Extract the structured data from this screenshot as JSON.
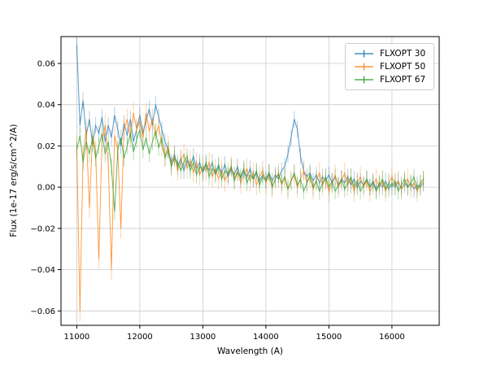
{
  "figure": {
    "background": "#ffffff"
  },
  "legend": {
    "position": "upper right"
  },
  "chart_data": {
    "type": "line",
    "title": "",
    "xlabel": "Wavelength (A)",
    "ylabel": "Flux (1e-17 erg/s/cm^2/A)",
    "grid": true,
    "legend_position": "upper right",
    "xlim": [
      10750,
      16750
    ],
    "ylim": [
      -0.067,
      0.073
    ],
    "x_ticks": [
      11000,
      12000,
      13000,
      14000,
      15000,
      16000
    ],
    "x_tick_labels": [
      "11000",
      "12000",
      "13000",
      "14000",
      "15000",
      "16000"
    ],
    "y_ticks": [
      -0.06,
      -0.04,
      -0.02,
      0,
      0.02,
      0.04,
      0.06
    ],
    "y_tick_labels": [
      "−0.06",
      "−0.04",
      "−0.02",
      "0.00",
      "0.02",
      "0.04",
      "0.06"
    ],
    "x_start": 11000,
    "x_step": 50,
    "series": [
      {
        "name": "FLXOPT 30",
        "color": "#1f77b4",
        "yerr": 0.004,
        "values": [
          0.069,
          0.03,
          0.042,
          0.025,
          0.033,
          0.021,
          0.03,
          0.026,
          0.034,
          0.022,
          0.03,
          0.024,
          0.035,
          0.028,
          0.02,
          0.031,
          0.025,
          0.033,
          0.022,
          0.028,
          0.035,
          0.026,
          0.032,
          0.038,
          0.03,
          0.04,
          0.034,
          0.028,
          0.022,
          0.018,
          0.012,
          0.016,
          0.01,
          0.014,
          0.008,
          0.013,
          0.01,
          0.015,
          0.009,
          0.012,
          0.007,
          0.011,
          0.008,
          0.012,
          0.006,
          0.01,
          0.007,
          0.011,
          0.005,
          0.009,
          0.006,
          0.01,
          0.004,
          0.008,
          0.005,
          0.009,
          0.004,
          0.007,
          0.003,
          0.006,
          0.004,
          0.007,
          0.003,
          0.006,
          0.004,
          0.008,
          0.01,
          0.016,
          0.024,
          0.033,
          0.028,
          0.015,
          0.008,
          0.005,
          0.007,
          0.003,
          0.006,
          0.002,
          0.005,
          0.003,
          0.006,
          0.002,
          0.005,
          0.001,
          0.004,
          0.002,
          0.005,
          0.001,
          0.004,
          0.0,
          0.003,
          0.001,
          0.004,
          0.0,
          0.003,
          -0.001,
          0.002,
          0.0,
          0.003,
          -0.001,
          0.002,
          0.0,
          0.003,
          -0.001,
          0.002,
          0.0,
          0.002,
          -0.001,
          0.001,
          0.0,
          0.002
        ]
      },
      {
        "name": "FLXOPT 50",
        "color": "#ff7f0e",
        "yerr": 0.005,
        "values": [
          0.02,
          -0.06,
          0.015,
          0.028,
          -0.01,
          0.025,
          0.018,
          -0.035,
          0.022,
          0.03,
          0.012,
          -0.04,
          0.025,
          0.018,
          -0.02,
          0.028,
          0.033,
          0.024,
          0.036,
          0.028,
          0.032,
          0.024,
          0.036,
          0.027,
          0.033,
          0.025,
          0.03,
          0.02,
          0.015,
          0.02,
          0.01,
          0.015,
          0.008,
          0.013,
          0.016,
          0.009,
          0.013,
          0.007,
          0.012,
          0.006,
          0.01,
          0.008,
          0.012,
          0.005,
          0.009,
          0.004,
          0.008,
          0.003,
          0.007,
          0.01,
          0.004,
          0.008,
          0.002,
          0.006,
          0.009,
          0.003,
          0.007,
          0.001,
          0.005,
          0.008,
          0.002,
          0.006,
          0.0,
          0.004,
          0.007,
          0.001,
          0.005,
          -0.001,
          0.003,
          0.006,
          0.0,
          0.004,
          0.008,
          0.002,
          0.005,
          -0.001,
          0.003,
          0.007,
          0.001,
          0.004,
          -0.002,
          0.002,
          0.006,
          0.0,
          0.003,
          0.007,
          0.001,
          0.004,
          -0.002,
          0.002,
          0.005,
          0.0,
          0.003,
          -0.002,
          0.001,
          0.004,
          0.0,
          0.003,
          -0.002,
          0.002,
          0.005,
          0.001,
          0.003,
          -0.001,
          0.002,
          0.004,
          0.0,
          0.002,
          -0.002,
          0.001,
          0.003
        ]
      },
      {
        "name": "FLXOPT 67",
        "color": "#2ca02c",
        "yerr": 0.004,
        "values": [
          0.018,
          0.025,
          0.012,
          0.022,
          0.016,
          0.024,
          0.014,
          0.02,
          0.026,
          0.016,
          0.022,
          0.01,
          -0.012,
          0.018,
          0.024,
          0.014,
          0.02,
          0.026,
          0.017,
          0.023,
          0.028,
          0.018,
          0.024,
          0.016,
          0.022,
          0.027,
          0.019,
          0.024,
          0.014,
          0.018,
          0.01,
          0.014,
          0.012,
          0.008,
          0.012,
          0.015,
          0.008,
          0.012,
          0.006,
          0.01,
          0.008,
          0.012,
          0.005,
          0.009,
          0.007,
          0.011,
          0.004,
          0.008,
          0.006,
          0.01,
          0.003,
          0.007,
          0.005,
          0.009,
          0.002,
          0.006,
          0.004,
          0.008,
          0.001,
          0.005,
          0.003,
          0.007,
          0.0,
          0.004,
          0.006,
          0.002,
          0.005,
          -0.001,
          0.003,
          0.007,
          0.001,
          0.004,
          -0.002,
          0.002,
          0.006,
          0.0,
          0.003,
          -0.002,
          0.002,
          0.005,
          0.0,
          0.003,
          -0.002,
          0.001,
          0.004,
          -0.001,
          0.002,
          0.005,
          0.0,
          0.003,
          -0.002,
          0.001,
          0.004,
          0.0,
          0.002,
          -0.002,
          0.001,
          0.004,
          -0.001,
          0.002,
          0.0,
          0.003,
          -0.002,
          0.001,
          0.004,
          0.0,
          0.002,
          0.005,
          -0.001,
          0.002,
          0.004
        ]
      }
    ]
  }
}
